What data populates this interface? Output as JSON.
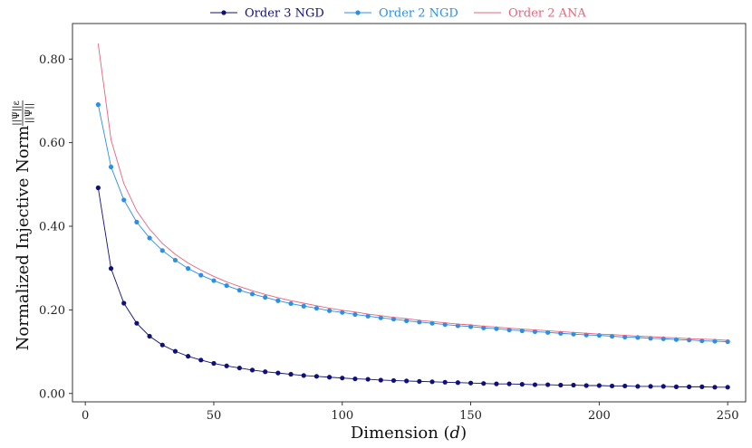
{
  "chart_data": {
    "type": "line",
    "xlabel": "Dimension (d)",
    "ylabel": "Normalized Injective Norm",
    "ylabel_fraction": {
      "numerator": "||Ψ||ε",
      "denominator": "||Ψ||"
    },
    "xlim": [
      -5,
      257
    ],
    "ylim": [
      -0.02,
      0.885
    ],
    "xticks": [
      0,
      50,
      100,
      150,
      200,
      250
    ],
    "xtick_labels": [
      "0",
      "50",
      "100",
      "150",
      "200",
      "250"
    ],
    "yticks": [
      0.0,
      0.2,
      0.4,
      0.6,
      0.8
    ],
    "ytick_labels": [
      "0.00",
      "0.20",
      "0.40",
      "0.60",
      "0.80"
    ],
    "grid": false,
    "legend_position": "top",
    "x": [
      5,
      10,
      15,
      20,
      25,
      30,
      35,
      40,
      45,
      50,
      55,
      60,
      65,
      70,
      75,
      80,
      85,
      90,
      95,
      100,
      105,
      110,
      115,
      120,
      125,
      130,
      135,
      140,
      145,
      150,
      155,
      160,
      165,
      170,
      175,
      180,
      185,
      190,
      195,
      200,
      205,
      210,
      215,
      220,
      225,
      230,
      235,
      240,
      245,
      250
    ],
    "series": [
      {
        "name": "Order 3 NGD",
        "color": "#10107a",
        "style": "line+markers",
        "values": [
          0.492,
          0.299,
          0.216,
          0.168,
          0.137,
          0.116,
          0.101,
          0.089,
          0.08,
          0.072,
          0.066,
          0.061,
          0.056,
          0.052,
          0.049,
          0.046,
          0.043,
          0.041,
          0.039,
          0.037,
          0.035,
          0.034,
          0.032,
          0.031,
          0.03,
          0.029,
          0.028,
          0.027,
          0.026,
          0.025,
          0.024,
          0.023,
          0.023,
          0.022,
          0.021,
          0.021,
          0.02,
          0.02,
          0.019,
          0.019,
          0.018,
          0.018,
          0.017,
          0.017,
          0.017,
          0.016,
          0.016,
          0.016,
          0.015,
          0.015
        ]
      },
      {
        "name": "Order 2 NGD",
        "color": "#2a8fe6",
        "style": "line+markers",
        "values": [
          0.691,
          0.542,
          0.463,
          0.41,
          0.372,
          0.342,
          0.319,
          0.299,
          0.283,
          0.27,
          0.258,
          0.247,
          0.238,
          0.23,
          0.222,
          0.215,
          0.209,
          0.204,
          0.198,
          0.194,
          0.189,
          0.185,
          0.181,
          0.178,
          0.174,
          0.171,
          0.168,
          0.165,
          0.162,
          0.16,
          0.157,
          0.155,
          0.152,
          0.15,
          0.148,
          0.146,
          0.144,
          0.142,
          0.14,
          0.139,
          0.137,
          0.135,
          0.134,
          0.132,
          0.131,
          0.129,
          0.128,
          0.126,
          0.125,
          0.124
        ]
      },
      {
        "name": "Order 2 ANA",
        "color": "#e8637c",
        "style": "line",
        "values": [
          0.837,
          0.607,
          0.502,
          0.437,
          0.393,
          0.359,
          0.333,
          0.312,
          0.295,
          0.28,
          0.267,
          0.256,
          0.246,
          0.237,
          0.229,
          0.222,
          0.216,
          0.21,
          0.204,
          0.199,
          0.195,
          0.19,
          0.186,
          0.182,
          0.179,
          0.175,
          0.172,
          0.169,
          0.166,
          0.164,
          0.161,
          0.159,
          0.156,
          0.154,
          0.152,
          0.15,
          0.148,
          0.146,
          0.144,
          0.142,
          0.141,
          0.139,
          0.137,
          0.136,
          0.134,
          0.133,
          0.131,
          0.13,
          0.129,
          0.127
        ]
      }
    ]
  }
}
